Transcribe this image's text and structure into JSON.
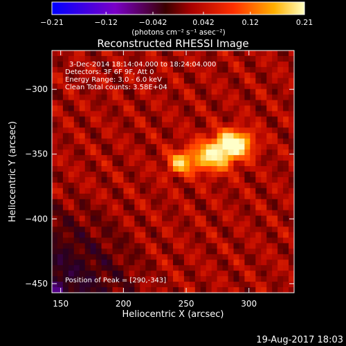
{
  "chart_data": {
    "type": "heatmap",
    "title": "Reconstructed RHESSI Image",
    "xlabel": "Heliocentric X (arcsec)",
    "ylabel": "Heliocentric Y (arcsec)",
    "xlim": [
      143,
      336
    ],
    "ylim": [
      -457,
      -270
    ],
    "xticks": [
      150,
      200,
      250,
      300
    ],
    "yticks": [
      -300,
      -350,
      -400,
      -450
    ],
    "xtick_labels": [
      "150",
      "200",
      "250",
      "300"
    ],
    "ytick_labels": [
      "−300",
      "−350",
      "−400",
      "−450"
    ],
    "colorbar": {
      "range": [
        -0.21,
        0.21
      ],
      "ticks": [
        -0.21,
        -0.12,
        -0.042,
        0.042,
        0.12,
        0.21
      ],
      "tick_labels": [
        "−0.21",
        "−0.12",
        "−0.042",
        "0.042",
        "0.12",
        "0.21"
      ],
      "units_label": "(photons cm⁻² s⁻¹ asec⁻²)",
      "colormap": "blue-purple-red-orange-yellow-white"
    },
    "annotations": [
      "3-Dec-2014 18:14:04.000 to 18:24:04.000",
      "Detectors: 3F 6F 9F, Att 0",
      "Energy Range: 3.0 - 6.0 keV",
      "Clean     Total counts: 3.58E+04"
    ],
    "peak_label": "Position of Peak = [290,-343]",
    "peak": {
      "x": 290,
      "y": -343
    },
    "sources": [
      {
        "x": 288,
        "y": -342,
        "sx": 10,
        "sy": 7,
        "amp": 0.2
      },
      {
        "x": 270,
        "y": -352,
        "sx": 12,
        "sy": 8,
        "amp": 0.15
      },
      {
        "x": 245,
        "y": -357,
        "sx": 7,
        "sy": 6,
        "amp": 0.12
      }
    ],
    "background_level": 0.03,
    "grid": false
  },
  "footer": {
    "date": "19-Aug-2017 18:03"
  }
}
